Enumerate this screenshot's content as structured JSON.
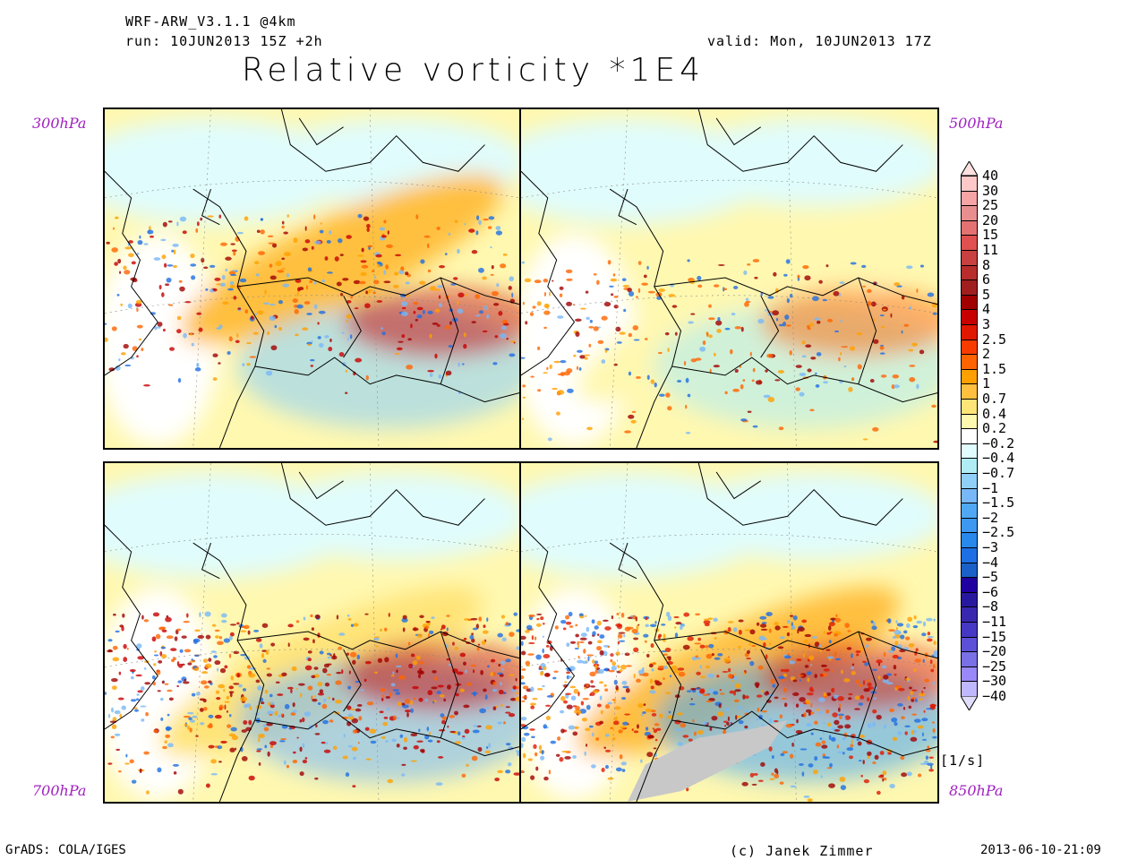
{
  "header": {
    "model": "WRF-ARW_V3.1.1 @4km",
    "run": "run: 10JUN2013 15Z +2h",
    "valid": "valid: Mon, 10JUN2013 17Z",
    "title": "Relative vorticity *1E4"
  },
  "panels": [
    {
      "level": "300hPa",
      "bg": "#ffc040",
      "accent": "#c80000",
      "cool": "#90d0f8"
    },
    {
      "level": "500hPa",
      "bg": "#fff8b0",
      "accent": "#ff6400",
      "cool": "#b0ecf4"
    },
    {
      "level": "700hPa",
      "bg": "#ffe478",
      "accent": "#c80000",
      "cool": "#78b8f8"
    },
    {
      "level": "850hPa",
      "bg": "#ffc040",
      "accent": "#e01800",
      "cool": "#50a8f4"
    }
  ],
  "colorbar": {
    "labels": [
      "40",
      "30",
      "25",
      "20",
      "15",
      "11",
      "8",
      "6",
      "5",
      "4",
      "3",
      "2.5",
      "2",
      "1.5",
      "1",
      "0.7",
      "0.4",
      "0.2",
      "−0.2",
      "−0.4",
      "−0.7",
      "−1",
      "−1.5",
      "−2",
      "−2.5",
      "−3",
      "−4",
      "−5",
      "−6",
      "−8",
      "−11",
      "−15",
      "−20",
      "−25",
      "−30",
      "−40"
    ],
    "colors": [
      "#fcc8c8",
      "#f6a4a4",
      "#e88e8e",
      "#e47272",
      "#e05050",
      "#c84040",
      "#b82c2c",
      "#a01e1e",
      "#a00000",
      "#c80000",
      "#e01800",
      "#f83c00",
      "#ff6400",
      "#ffa000",
      "#ffc040",
      "#ffe478",
      "#fff8b0",
      "#ffffff",
      "#e0fcfc",
      "#b0ecf4",
      "#90d0f8",
      "#78b8f8",
      "#50a8f4",
      "#3c98f0",
      "#2888ec",
      "#1e6ee4",
      "#1a60c8",
      "#2000a0",
      "#2818a0",
      "#3828b0",
      "#4438c4",
      "#5c50d8",
      "#7870e4",
      "#9888f8",
      "#c0b8fc"
    ],
    "top_color": "#fde0e0",
    "bottom_color": "#e0dcfc",
    "units": "[1/s]"
  },
  "footer": {
    "left": "GrADS: COLA/IGES",
    "center": "(c) Janek Zimmer",
    "right": "2013-06-10-21:09"
  }
}
